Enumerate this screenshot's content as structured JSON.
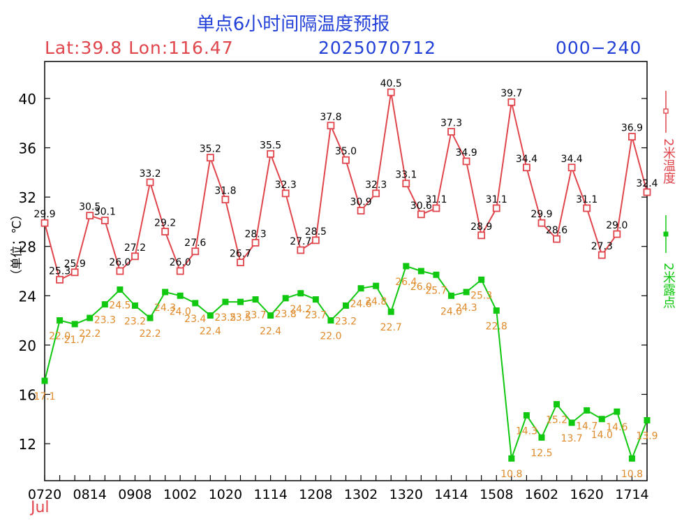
{
  "header": {
    "title": "单点6小时间隔温度预报",
    "latlon": "Lat:39.8  Lon:116.47",
    "date": "2025070712",
    "range": "000−240"
  },
  "y_axis_label": "（单位：℃）",
  "month_label": "Jul",
  "colors": {
    "temp": "#e0454c",
    "dew": "#10c810",
    "dew_label": "#e08a2a",
    "title": "#2240d8"
  },
  "chart_data": {
    "type": "line",
    "x_tick_labels": [
      "0720",
      "0814",
      "0908",
      "1002",
      "1020",
      "1114",
      "1208",
      "1302",
      "1320",
      "1414",
      "1508",
      "1602",
      "1620",
      "1714"
    ],
    "ylim": [
      9,
      43
    ],
    "yticks": [
      12,
      16,
      20,
      24,
      28,
      32,
      36,
      40
    ],
    "grid": false,
    "legend_position": "right",
    "series": [
      {
        "name": "2米温度",
        "marker": "open-square",
        "values": [
          29.9,
          25.3,
          25.9,
          30.5,
          30.1,
          26.0,
          27.2,
          33.2,
          29.2,
          26.0,
          27.6,
          35.2,
          31.8,
          26.7,
          28.3,
          35.5,
          32.3,
          27.7,
          28.5,
          37.8,
          35.0,
          30.9,
          32.3,
          40.5,
          33.1,
          30.6,
          31.1,
          37.3,
          34.9,
          28.9,
          31.1,
          39.7,
          34.4,
          29.9,
          28.6,
          34.4,
          31.1,
          27.3,
          29.0,
          36.9,
          32.4
        ]
      },
      {
        "name": "2米露点",
        "marker": "filled-square",
        "values": [
          17.1,
          22.0,
          21.7,
          22.2,
          23.3,
          24.5,
          23.2,
          22.2,
          24.3,
          24.0,
          23.4,
          22.4,
          23.5,
          23.5,
          23.7,
          22.4,
          23.8,
          24.2,
          23.7,
          22.0,
          23.2,
          24.6,
          24.8,
          22.7,
          26.4,
          26.0,
          25.7,
          24.0,
          24.3,
          25.3,
          22.8,
          10.8,
          14.3,
          12.5,
          15.2,
          13.7,
          14.7,
          14.0,
          14.6,
          10.8,
          13.9
        ]
      }
    ]
  }
}
